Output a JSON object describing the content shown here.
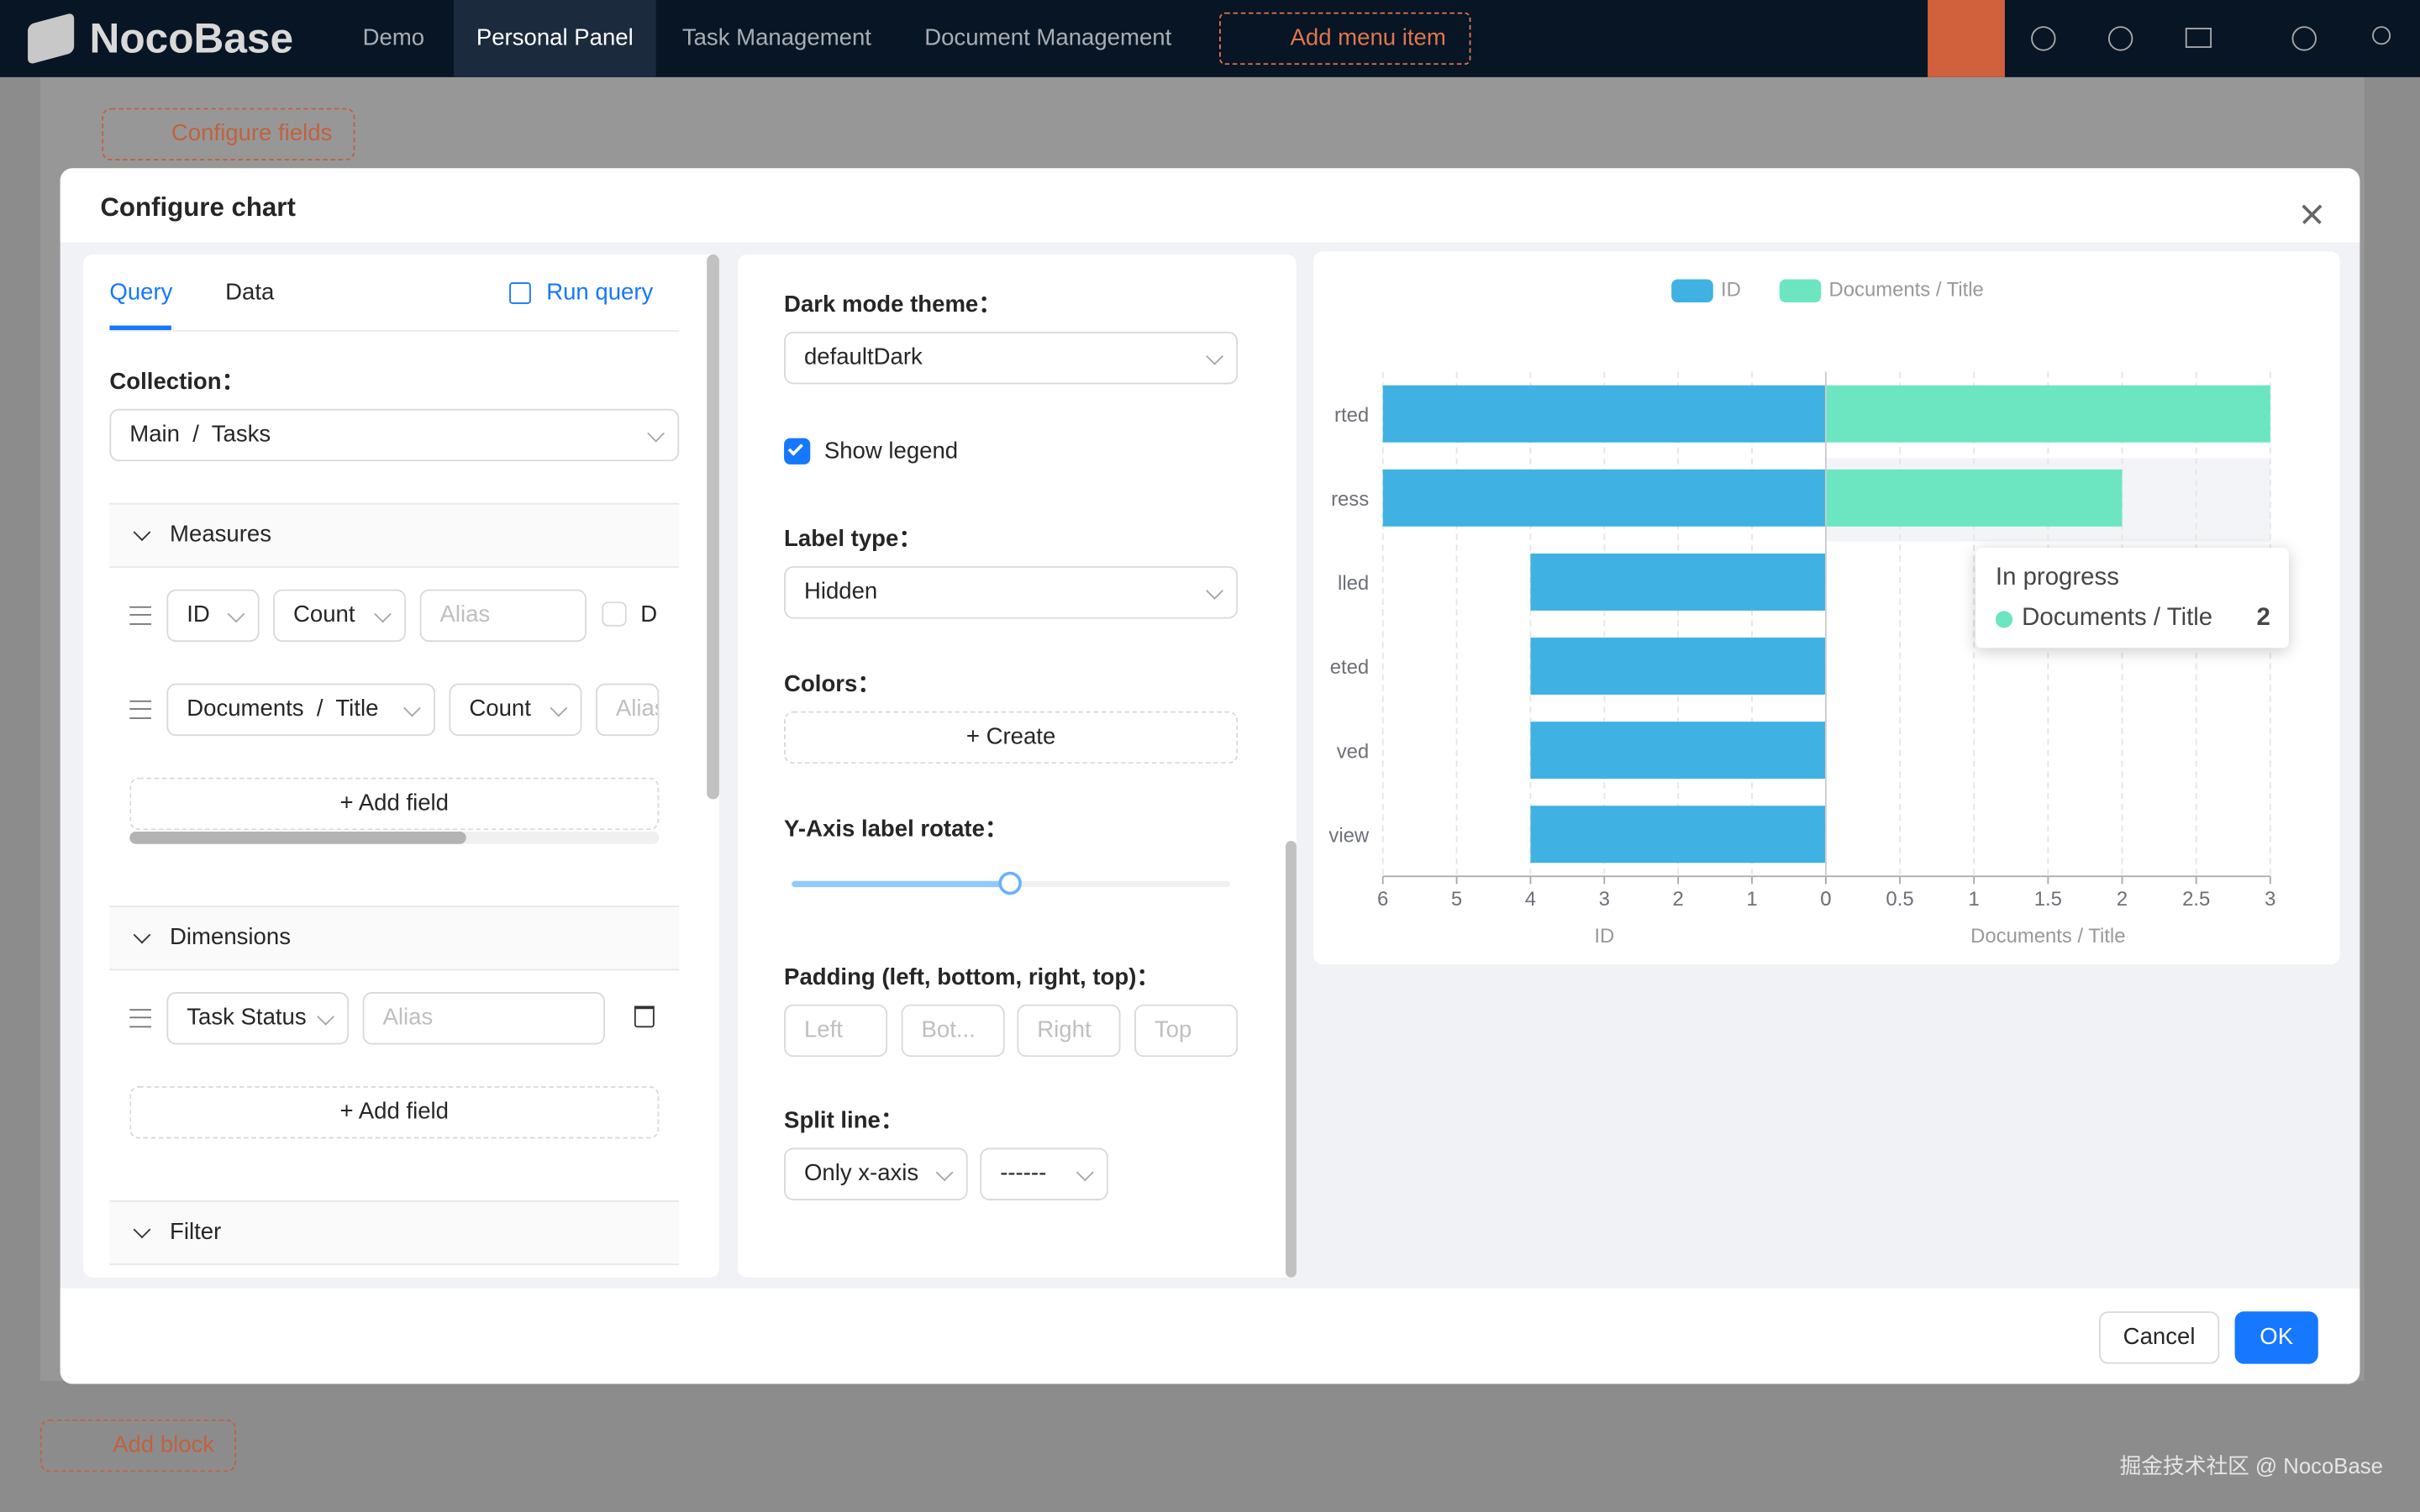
{
  "nav": {
    "logo": "NocoBase",
    "items": [
      "Demo",
      "Personal Panel",
      "Task Management",
      "Document Management"
    ],
    "add_menu_item": "Add menu item"
  },
  "background": {
    "configure_fields": "Configure fields",
    "add_block": "Add block",
    "watermark": "掘金技术社区 @ NocoBase"
  },
  "modal": {
    "title": "Configure chart",
    "query_panel": {
      "tabs": [
        "Query",
        "Data"
      ],
      "run_query": "Run query",
      "collection_label": "Collection：",
      "collection": "Main  /  Tasks",
      "measures": {
        "title": "Measures",
        "rows": [
          [
            "ID",
            "Count",
            "Alias",
            "D"
          ],
          [
            "Documents  /  Title",
            "Count",
            "Alias"
          ]
        ],
        "add_field": "Add field"
      },
      "dimensions": {
        "title": "Dimensions",
        "rows": [
          [
            "Task Status",
            "Alias"
          ]
        ],
        "add_field": "Add field"
      },
      "filter": "Filter"
    },
    "settings_panel": {
      "dark_mode_label": "Dark mode theme：",
      "dark_mode": "defaultDark",
      "show_legend": "Show legend",
      "label_type_label": "Label type：",
      "label_type": "Hidden",
      "colors_label": "Colors：",
      "create": "Create",
      "rotate_label": "Y-Axis label rotate：",
      "padding_label": "Padding (left, bottom, right, top)：",
      "padding_placeholders": [
        "Left",
        "Bot...",
        "Right",
        "Top"
      ],
      "split_line_label": "Split line：",
      "split_line": [
        "Only x-axis",
        "------"
      ]
    },
    "tooltip": {
      "title": "In progress"
    },
    "cancel": "Cancel",
    "ok": "OK"
  },
  "chart_data": {
    "type": "bar",
    "orientation": "horizontal",
    "categories": [
      "rted",
      "ress",
      "lled",
      "eted",
      "ved",
      "view"
    ],
    "series": [
      {
        "name": "ID",
        "color": "#3fb1e3",
        "values": [
          6,
          6,
          4,
          4,
          4,
          4
        ]
      },
      {
        "name": "Documents / Title",
        "color": "#6be6c1",
        "axis": "x2",
        "values": [
          3,
          2,
          0,
          0,
          0,
          0
        ]
      }
    ],
    "xlabel": "ID",
    "xlim": [
      6,
      0
    ],
    "xticks": [
      6,
      5,
      4,
      3,
      2,
      1,
      0
    ],
    "x2label": "Documents / Title",
    "x2lim": [
      0,
      3
    ],
    "x2ticks": [
      0,
      0.5,
      1,
      1.5,
      2,
      2.5,
      3
    ],
    "grid": "x",
    "legend": "top"
  }
}
